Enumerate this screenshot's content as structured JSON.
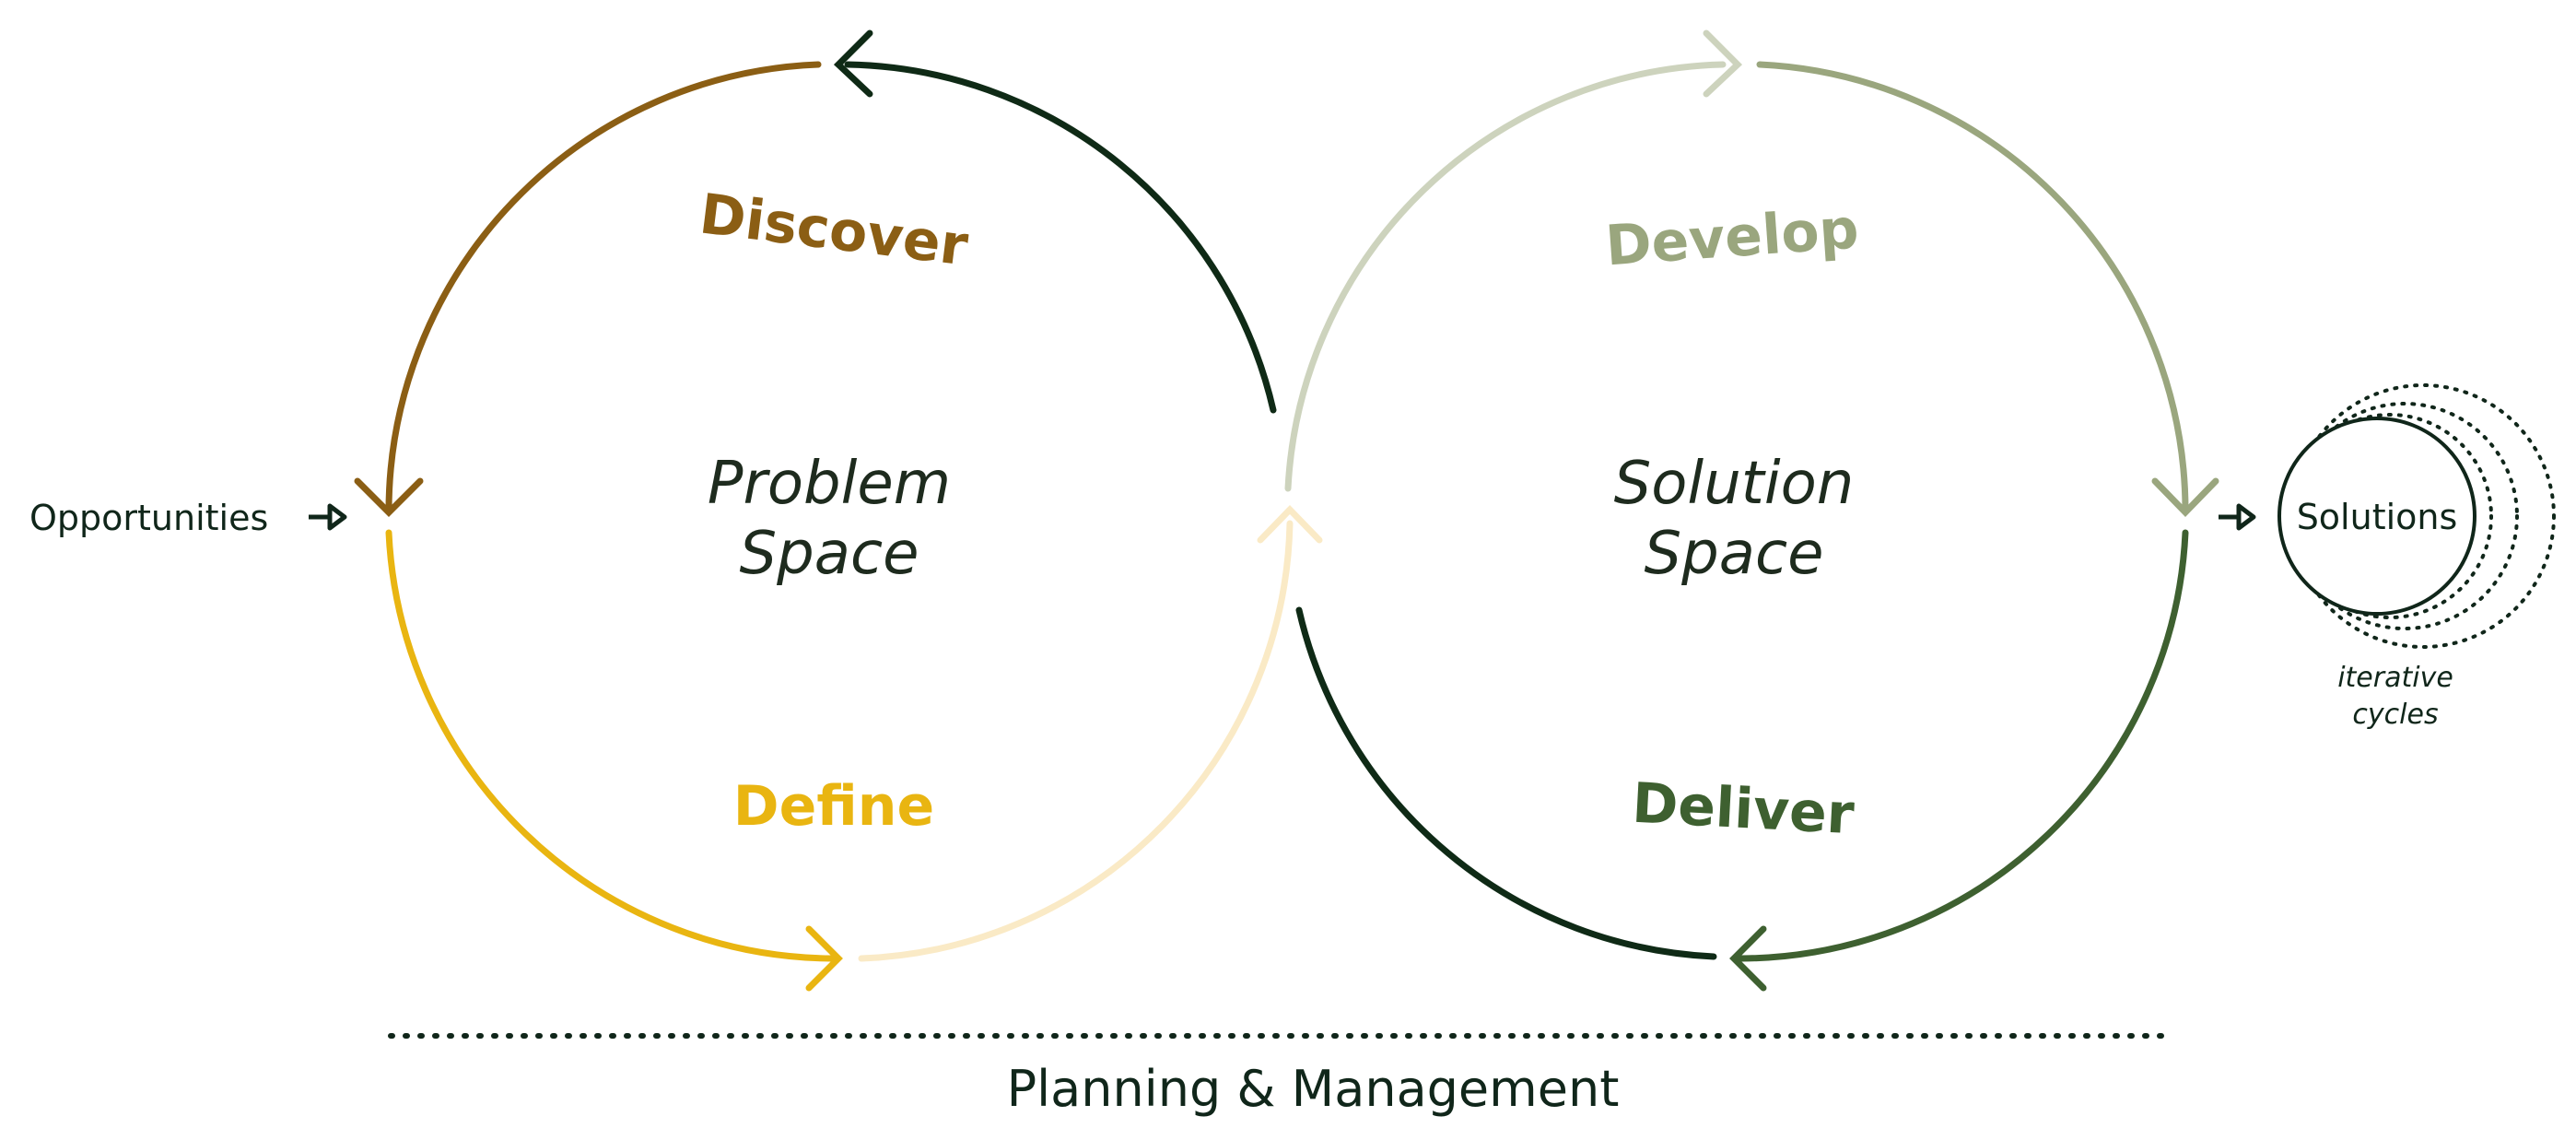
{
  "phases": {
    "discover": "Discover",
    "define": "Define",
    "develop": "Develop",
    "deliver": "Deliver"
  },
  "spaces": {
    "problem_line1": "Problem",
    "problem_line2": "Space",
    "solution_line1": "Solution",
    "solution_line2": "Space"
  },
  "input_label": "Opportunities",
  "output_label": "Solutions",
  "iterative_line1": "iterative",
  "iterative_line2": "cycles",
  "footer_label": "Planning & Management",
  "colors": {
    "brown": "#8b5e14",
    "dark_green": "#0f2a16",
    "yellow": "#e9b511",
    "cream": "#faeac6",
    "pale_sage": "#cdd3bd",
    "sage": "#9aa67e",
    "olive": "#3e6030"
  }
}
